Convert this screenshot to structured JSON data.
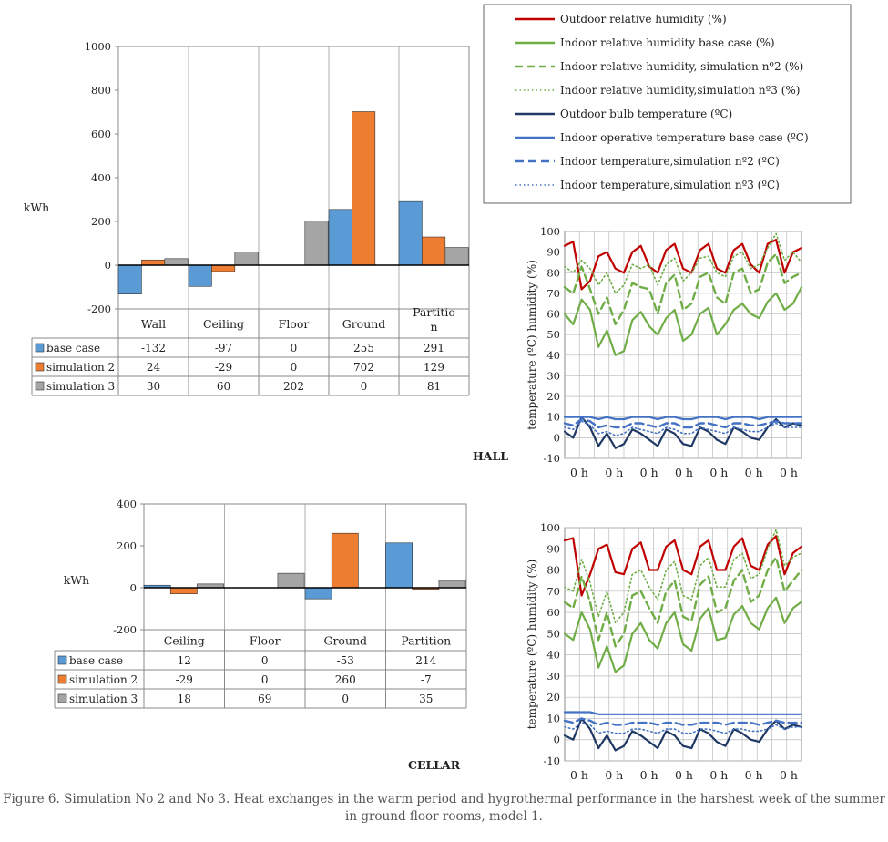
{
  "chart_data": [
    {
      "type": "bar",
      "ylabel": "kWh",
      "ylim": [
        -200,
        1000
      ],
      "yticks": [
        -200,
        0,
        200,
        400,
        600,
        800,
        1000
      ],
      "grid": true,
      "categories": [
        "Wall",
        "Ceiling",
        "Floor",
        "Ground",
        "Partitio n"
      ],
      "series": [
        {
          "name": "base case",
          "color": "#5b9bd5",
          "values": [
            -132,
            -97,
            0,
            255,
            291
          ]
        },
        {
          "name": "simulation 2",
          "color": "#ed7d31",
          "values": [
            24,
            -29,
            0,
            702,
            129
          ]
        },
        {
          "name": "simulation 3",
          "color": "#a5a5a5",
          "values": [
            30,
            60,
            202,
            0,
            81
          ]
        }
      ]
    },
    {
      "type": "bar",
      "ylabel": "kWh",
      "ylim": [
        -200,
        400
      ],
      "yticks": [
        -200,
        0,
        200,
        400
      ],
      "grid": true,
      "categories": [
        "Ceiling",
        "Floor",
        "Ground",
        "Partition"
      ],
      "series": [
        {
          "name": "base case",
          "color": "#5b9bd5",
          "values": [
            12,
            0,
            -53,
            214
          ]
        },
        {
          "name": "simulation 2",
          "color": "#ed7d31",
          "values": [
            -29,
            0,
            260,
            -7
          ]
        },
        {
          "name": "simulation 3",
          "color": "#a5a5a5",
          "values": [
            18,
            69,
            0,
            35
          ]
        }
      ]
    },
    {
      "type": "line",
      "ylabel": "temperature (ºC) humidity (%)",
      "ylim": [
        -10,
        100
      ],
      "yticks": [
        -10,
        0,
        10,
        20,
        30,
        40,
        50,
        60,
        70,
        80,
        90,
        100
      ],
      "xtick_labels": [
        "0 h",
        "0 h",
        "0 h",
        "0 h",
        "0 h",
        "0 h",
        "0 h"
      ],
      "grid": true,
      "series": [
        {
          "name": "Outdoor relative humidity (%)",
          "color": "#c00000",
          "style": "solid",
          "values": [
            93,
            95,
            72,
            76,
            88,
            90,
            82,
            80,
            90,
            93,
            83,
            80,
            91,
            94,
            82,
            80,
            91,
            94,
            82,
            80,
            91,
            94,
            84,
            80,
            94,
            96,
            80,
            90,
            92
          ]
        },
        {
          "name": "Indoor relative humidity base case (%)",
          "color": "#70ad47",
          "style": "solid",
          "values": [
            60,
            55,
            67,
            62,
            44,
            52,
            40,
            42,
            57,
            61,
            54,
            50,
            58,
            62,
            47,
            50,
            60,
            63,
            50,
            55,
            62,
            65,
            60,
            58,
            66,
            70,
            62,
            65,
            73
          ]
        },
        {
          "name": "Indoor relative humidity, simulation nº2 (%)",
          "color": "#70ad47",
          "style": "dashed",
          "values": [
            73,
            70,
            83,
            72,
            60,
            68,
            55,
            62,
            75,
            73,
            72,
            60,
            75,
            79,
            62,
            65,
            78,
            80,
            68,
            65,
            80,
            82,
            70,
            72,
            85,
            89,
            75,
            78,
            80
          ]
        },
        {
          "name": "Indoor relative humidity,simulation nº3 (%)",
          "color": "#70ad47",
          "style": "dotted",
          "values": [
            83,
            80,
            86,
            82,
            74,
            80,
            70,
            74,
            84,
            82,
            84,
            74,
            84,
            87,
            76,
            80,
            87,
            88,
            80,
            78,
            88,
            90,
            82,
            84,
            92,
            99,
            86,
            90,
            85
          ]
        },
        {
          "name": "Outdoor bulb temperature (ºC)",
          "color": "#1f3864",
          "style": "solid",
          "values": [
            3,
            0,
            10,
            5,
            -4,
            2,
            -5,
            -3,
            4,
            2,
            -1,
            -4,
            4,
            2,
            -3,
            -4,
            5,
            3,
            -1,
            -3,
            5,
            3,
            0,
            -1,
            5,
            9,
            5,
            7,
            6
          ]
        },
        {
          "name": "Indoor operative temperature base case (ºC)",
          "color": "#4472c4",
          "style": "solid",
          "values": [
            10,
            10,
            10,
            10,
            9,
            10,
            9,
            9,
            10,
            10,
            10,
            9,
            10,
            10,
            9,
            9,
            10,
            10,
            10,
            9,
            10,
            10,
            10,
            9,
            10,
            10,
            10,
            10,
            10
          ]
        },
        {
          "name": "Indoor temperature,simulation nº2 (ºC)",
          "color": "#4472c4",
          "style": "dashed",
          "values": [
            7,
            6,
            9,
            8,
            5,
            6,
            5,
            5,
            7,
            7,
            6,
            5,
            7,
            7,
            5,
            5,
            7,
            7,
            6,
            5,
            7,
            7,
            6,
            6,
            7,
            8,
            7,
            7,
            7
          ]
        },
        {
          "name": "Indoor temperature,simulation nº3 (ºC)",
          "color": "#4472c4",
          "style": "dotted",
          "values": [
            5,
            4,
            8,
            6,
            2,
            3,
            1,
            2,
            5,
            4,
            3,
            2,
            5,
            4,
            2,
            2,
            5,
            4,
            3,
            2,
            5,
            4,
            3,
            3,
            5,
            7,
            5,
            5,
            5
          ]
        }
      ]
    },
    {
      "type": "line",
      "ylabel": "temperature (ºC) humidity (%)",
      "ylim": [
        -10,
        100
      ],
      "yticks": [
        -10,
        0,
        10,
        20,
        30,
        40,
        50,
        60,
        70,
        80,
        90,
        100
      ],
      "xtick_labels": [
        "0 h",
        "0 h",
        "0 h",
        "0 h",
        "0 h",
        "0 h",
        "0 h"
      ],
      "grid": true,
      "series": [
        {
          "name": "Outdoor relative humidity (%)",
          "color": "#c00000",
          "style": "solid",
          "values": [
            94,
            95,
            68,
            78,
            90,
            92,
            79,
            78,
            90,
            93,
            80,
            80,
            91,
            94,
            80,
            78,
            91,
            94,
            80,
            80,
            91,
            95,
            82,
            80,
            92,
            96,
            78,
            88,
            91
          ]
        },
        {
          "name": "Indoor relative humidity base case (%)",
          "color": "#70ad47",
          "style": "solid",
          "values": [
            50,
            47,
            60,
            52,
            34,
            44,
            32,
            35,
            50,
            55,
            47,
            43,
            55,
            60,
            45,
            42,
            57,
            62,
            47,
            48,
            59,
            63,
            55,
            52,
            62,
            67,
            55,
            62,
            65
          ]
        },
        {
          "name": "Indoor relative humidity, simulation nº2 (%)",
          "color": "#70ad47",
          "style": "dashed",
          "values": [
            65,
            62,
            77,
            65,
            47,
            60,
            44,
            50,
            68,
            70,
            62,
            55,
            70,
            75,
            58,
            56,
            73,
            77,
            60,
            62,
            75,
            80,
            65,
            68,
            80,
            86,
            70,
            75,
            80
          ]
        },
        {
          "name": "Indoor relative humidity,simulation nº3 (%)",
          "color": "#70ad47",
          "style": "dotted",
          "values": [
            72,
            70,
            85,
            74,
            58,
            70,
            55,
            60,
            78,
            80,
            72,
            66,
            80,
            84,
            68,
            66,
            82,
            86,
            72,
            72,
            85,
            88,
            76,
            78,
            90,
            99,
            82,
            86,
            88
          ]
        },
        {
          "name": "Outdoor bulb temperature (ºC)",
          "color": "#1f3864",
          "style": "solid",
          "values": [
            2,
            0,
            10,
            5,
            -4,
            2,
            -5,
            -3,
            4,
            2,
            -1,
            -4,
            4,
            2,
            -3,
            -4,
            5,
            3,
            -1,
            -3,
            5,
            3,
            0,
            -1,
            5,
            9,
            5,
            7,
            6
          ]
        },
        {
          "name": "Indoor operative temperature base case (ºC)",
          "color": "#4472c4",
          "style": "solid",
          "values": [
            13,
            13,
            13,
            13,
            12,
            12,
            12,
            12,
            12,
            12,
            12,
            12,
            12,
            12,
            12,
            12,
            12,
            12,
            12,
            12,
            12,
            12,
            12,
            12,
            12,
            12,
            12,
            12,
            12
          ]
        },
        {
          "name": "Indoor temperature,simulation nº2 (ºC)",
          "color": "#4472c4",
          "style": "dashed",
          "values": [
            9,
            8,
            10,
            9,
            7,
            8,
            7,
            7,
            8,
            8,
            8,
            7,
            8,
            8,
            7,
            7,
            8,
            8,
            8,
            7,
            8,
            8,
            8,
            7,
            8,
            9,
            8,
            8,
            8
          ]
        },
        {
          "name": "Indoor temperature,simulation nº3 (ºC)",
          "color": "#4472c4",
          "style": "dotted",
          "values": [
            6,
            5,
            8,
            7,
            3,
            4,
            3,
            3,
            5,
            5,
            4,
            3,
            5,
            5,
            3,
            3,
            5,
            5,
            4,
            3,
            5,
            5,
            4,
            4,
            5,
            7,
            5,
            6,
            6
          ]
        }
      ]
    }
  ],
  "labels": {
    "hall": "HALL",
    "cellar": "CELLAR",
    "caption_line1": "Figure 6. Simulation No 2 and No 3. Heat exchanges in the warm period and hygrothermal performance in the harshest week of the summer",
    "caption_line2": "in ground floor rooms, model 1."
  }
}
